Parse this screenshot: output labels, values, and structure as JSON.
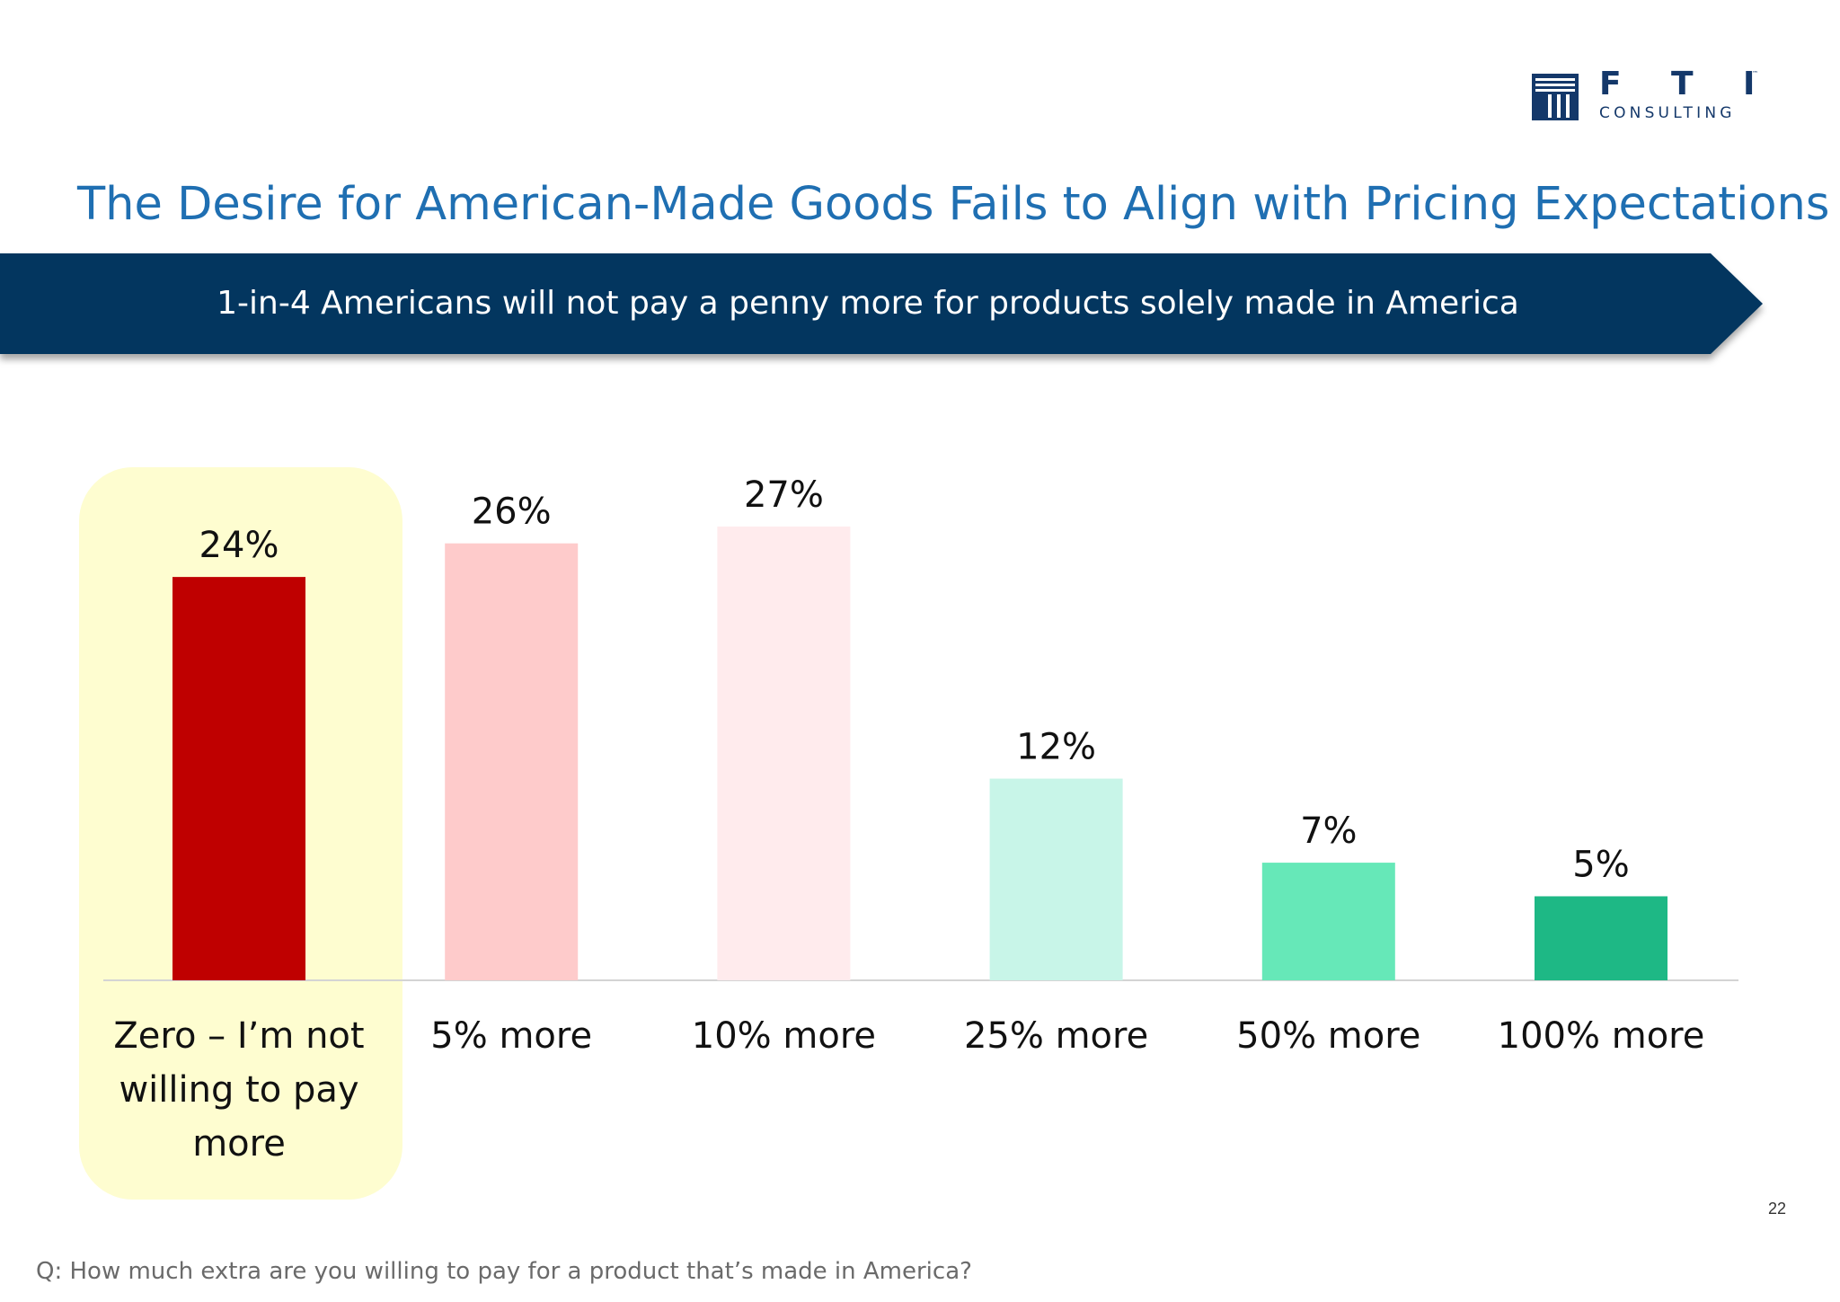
{
  "logo": {
    "letters": [
      "F",
      "T",
      "I"
    ],
    "trademark": "™",
    "subtitle": "CONSULTING"
  },
  "title": "The Desire for American-Made Goods Fails to Align with Pricing Expectations",
  "banner": "1-in-4 Americans will not pay a penny more for products solely made in America",
  "chart_data": {
    "type": "bar",
    "categories": [
      "Zero – I’m not willing to pay more",
      "5% more",
      "10% more",
      "25% more",
      "50% more",
      "100% more"
    ],
    "values": [
      24,
      26,
      27,
      12,
      7,
      5
    ],
    "value_labels": [
      "24%",
      "26%",
      "27%",
      "12%",
      "7%",
      "5%"
    ],
    "colors": [
      "#bf0000",
      "#fecbcb",
      "#ffebed",
      "#c8f5e8",
      "#66e8b8",
      "#1eb885"
    ],
    "highlighted_category": "Zero – I’m not willing to pay more",
    "highlight_color": "#fefdd0",
    "ylim": [
      0,
      27
    ],
    "grid": false,
    "legend": "none"
  },
  "page_number": "22",
  "footnote": "Q: How much extra are you willing to pay for a product that’s made in America?"
}
